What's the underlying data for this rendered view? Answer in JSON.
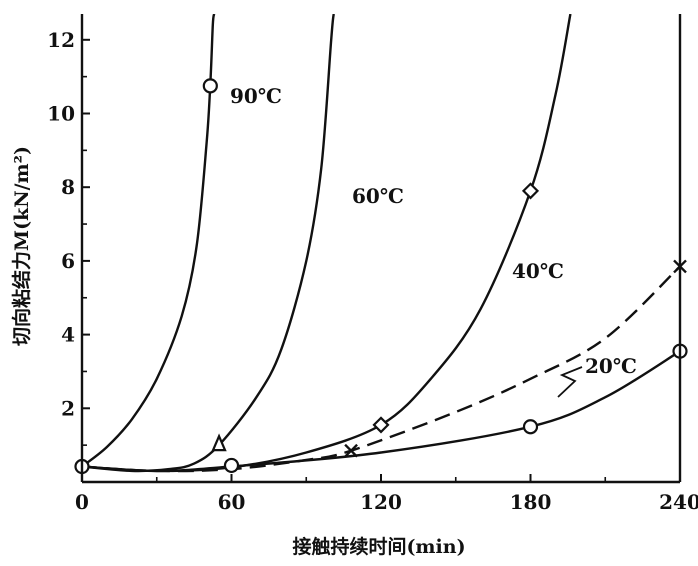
{
  "chart_data": {
    "type": "line",
    "title": "",
    "xlabel": "接触持续时间(min)",
    "ylabel": "切向粘结力M(kN/m²)",
    "xlim": [
      0,
      240
    ],
    "ylim": [
      0,
      12.7
    ],
    "xticks": [
      0,
      60,
      120,
      180,
      240
    ],
    "xtick_labels": [
      "0",
      "60",
      "120",
      "180",
      "240"
    ],
    "yticks": [
      2,
      4,
      6,
      8,
      10,
      12
    ],
    "ytick_labels": [
      "2",
      "4",
      "6",
      "8",
      "10",
      "12"
    ],
    "grid": false,
    "line_color": "#111111",
    "series": [
      {
        "name": "90℃",
        "dashed": false,
        "curve": [
          [
            0,
            0.42
          ],
          [
            10,
            0.95
          ],
          [
            20,
            1.7
          ],
          [
            30,
            2.8
          ],
          [
            40,
            4.5
          ],
          [
            46,
            6.4
          ],
          [
            50,
            9.2
          ],
          [
            51.5,
            10.8
          ],
          [
            52.5,
            12.4
          ],
          [
            53,
            12.7
          ]
        ],
        "markers": [
          {
            "x": 51.5,
            "y": 10.75,
            "shape": "circle"
          }
        ]
      },
      {
        "name": "60℃",
        "dashed": false,
        "curve": [
          [
            0,
            0.42
          ],
          [
            20,
            0.3
          ],
          [
            35,
            0.35
          ],
          [
            45,
            0.5
          ],
          [
            55,
            1.0
          ],
          [
            70,
            2.3
          ],
          [
            80,
            3.6
          ],
          [
            90,
            6.0
          ],
          [
            96,
            8.5
          ],
          [
            100,
            12.0
          ],
          [
            101,
            12.7
          ]
        ],
        "markers": [
          {
            "x": 55,
            "y": 1.0,
            "shape": "triangle"
          }
        ]
      },
      {
        "name": "40℃",
        "dashed": false,
        "curve": [
          [
            0,
            0.42
          ],
          [
            30,
            0.3
          ],
          [
            60,
            0.4
          ],
          [
            90,
            0.8
          ],
          [
            120,
            1.55
          ],
          [
            140,
            2.8
          ],
          [
            160,
            4.7
          ],
          [
            180,
            7.9
          ],
          [
            190,
            10.5
          ],
          [
            196,
            12.7
          ]
        ],
        "markers": [
          {
            "x": 120,
            "y": 1.55,
            "shape": "diamond"
          },
          {
            "x": 180,
            "y": 7.9,
            "shape": "diamond"
          }
        ]
      },
      {
        "name": "20℃",
        "dashed": true,
        "curve": [
          [
            0,
            0.42
          ],
          [
            30,
            0.3
          ],
          [
            60,
            0.35
          ],
          [
            90,
            0.6
          ],
          [
            108,
            0.85
          ],
          [
            150,
            1.9
          ],
          [
            180,
            2.8
          ],
          [
            210,
            3.9
          ],
          [
            240,
            5.85
          ]
        ],
        "markers": [
          {
            "x": 108,
            "y": 0.85,
            "shape": "cross"
          },
          {
            "x": 240,
            "y": 5.85,
            "shape": "cross"
          }
        ]
      },
      {
        "name": "",
        "dashed": false,
        "curve": [
          [
            0,
            0.42
          ],
          [
            30,
            0.3
          ],
          [
            60,
            0.42
          ],
          [
            120,
            0.8
          ],
          [
            180,
            1.5
          ],
          [
            210,
            2.3
          ],
          [
            240,
            3.55
          ]
        ],
        "markers": [
          {
            "x": 0,
            "y": 0.42,
            "shape": "circle"
          },
          {
            "x": 60,
            "y": 0.45,
            "shape": "circle"
          },
          {
            "x": 180,
            "y": 1.5,
            "shape": "circle"
          },
          {
            "x": 240,
            "y": 3.55,
            "shape": "circle"
          }
        ]
      }
    ]
  }
}
